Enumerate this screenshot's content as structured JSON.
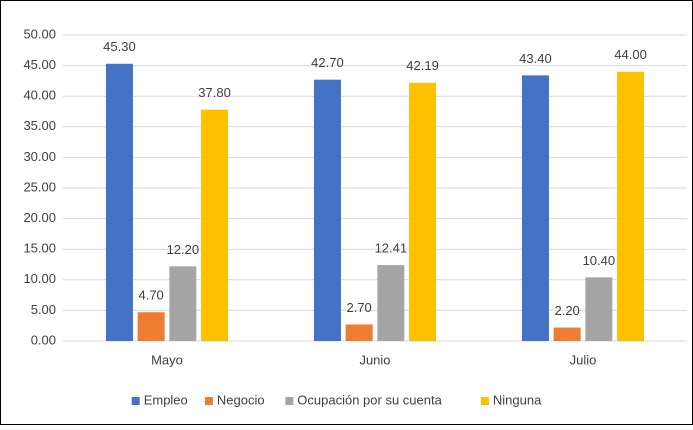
{
  "chart_data": {
    "type": "bar",
    "categories": [
      "Mayo",
      "Junio",
      "Julio"
    ],
    "series": [
      {
        "name": "Empleo",
        "color": "#4472c4",
        "values": [
          45.3,
          42.7,
          43.4
        ],
        "value_labels": [
          "45.30",
          "42.70",
          "43.40"
        ]
      },
      {
        "name": "Negocio",
        "color": "#ed7d31",
        "values": [
          4.7,
          2.7,
          2.2
        ],
        "value_labels": [
          "4.70",
          "2.70",
          "2.20"
        ]
      },
      {
        "name": "Ocupación por su cuenta",
        "color": "#a5a5a5",
        "values": [
          12.2,
          12.41,
          10.4
        ],
        "value_labels": [
          "12.20",
          "12.41",
          "10.40"
        ]
      },
      {
        "name": "Ninguna",
        "color": "#ffc000",
        "values": [
          37.8,
          42.19,
          44.0
        ],
        "value_labels": [
          "37.80",
          "42.19",
          "44.00"
        ]
      }
    ],
    "ylim": [
      0,
      50
    ],
    "yticks": [
      {
        "value": 0,
        "label": "0.00"
      },
      {
        "value": 5,
        "label": "5.00"
      },
      {
        "value": 10,
        "label": "10.00"
      },
      {
        "value": 15,
        "label": "15.00"
      },
      {
        "value": 20,
        "label": "20.00"
      },
      {
        "value": 25,
        "label": "25.00"
      },
      {
        "value": 30,
        "label": "30.00"
      },
      {
        "value": 35,
        "label": "35.00"
      },
      {
        "value": 40,
        "label": "40.00"
      },
      {
        "value": 45,
        "label": "45.00"
      },
      {
        "value": 50,
        "label": "50.00"
      }
    ],
    "grid": true,
    "legend": "bottom"
  }
}
